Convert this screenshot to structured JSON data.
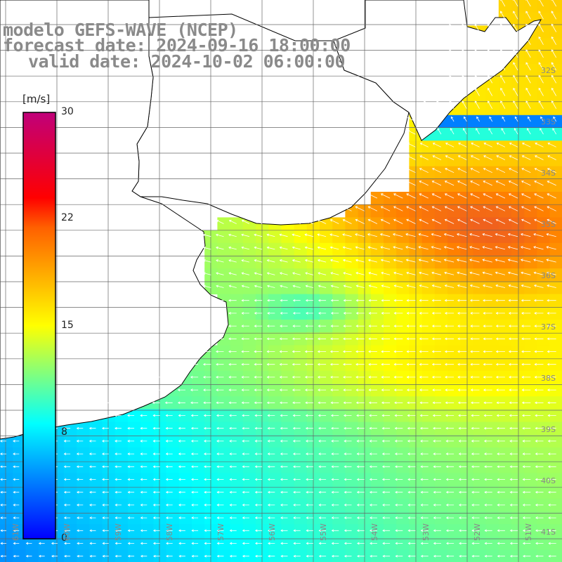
{
  "header": {
    "line1": "modelo GEFS-WAVE (NCEP)",
    "line2": "forecast date: 2024-09-16 18:00:00",
    "line3": "valid date: 2024-10-02 06:00:00"
  },
  "legend": {
    "unit": "[m/s]",
    "min": 0,
    "max": 30,
    "ticks": [
      "30",
      "22",
      "15",
      "8",
      "0"
    ],
    "tick_values": [
      30,
      22,
      15,
      8,
      0
    ]
  },
  "lat_labels": [
    "32S",
    "33S",
    "34S",
    "35S",
    "36S",
    "37S",
    "38S",
    "39S",
    "40S",
    "41S"
  ],
  "lon_labels": [
    "61W",
    "60W",
    "59W",
    "58W",
    "57W",
    "56W",
    "55W",
    "54W",
    "53W",
    "52W",
    "51W"
  ],
  "wind_field": {
    "variable": "wind speed",
    "region": "Río de la Plata / South Atlantic",
    "direction_general": "from the east (arrows pointing west)",
    "colors": {
      "0": "#0000ff",
      "8": "#00ffff",
      "15": "#ffff00",
      "22": "#ff8000",
      "30": "#c0007a"
    },
    "zones": [
      {
        "area": "southwest coastal shelf",
        "speed_range": [
          8,
          11
        ]
      },
      {
        "area": "estuary and central shelf",
        "speed_range": [
          12,
          14
        ]
      },
      {
        "area": "south-central ocean",
        "speed_range": [
          14,
          16
        ]
      },
      {
        "area": "offshore east near 34S-36S",
        "speed_range": [
          17,
          21
        ]
      },
      {
        "area": "Uruguayan coast band near 33S",
        "speed_range": [
          3,
          8
        ]
      }
    ]
  }
}
